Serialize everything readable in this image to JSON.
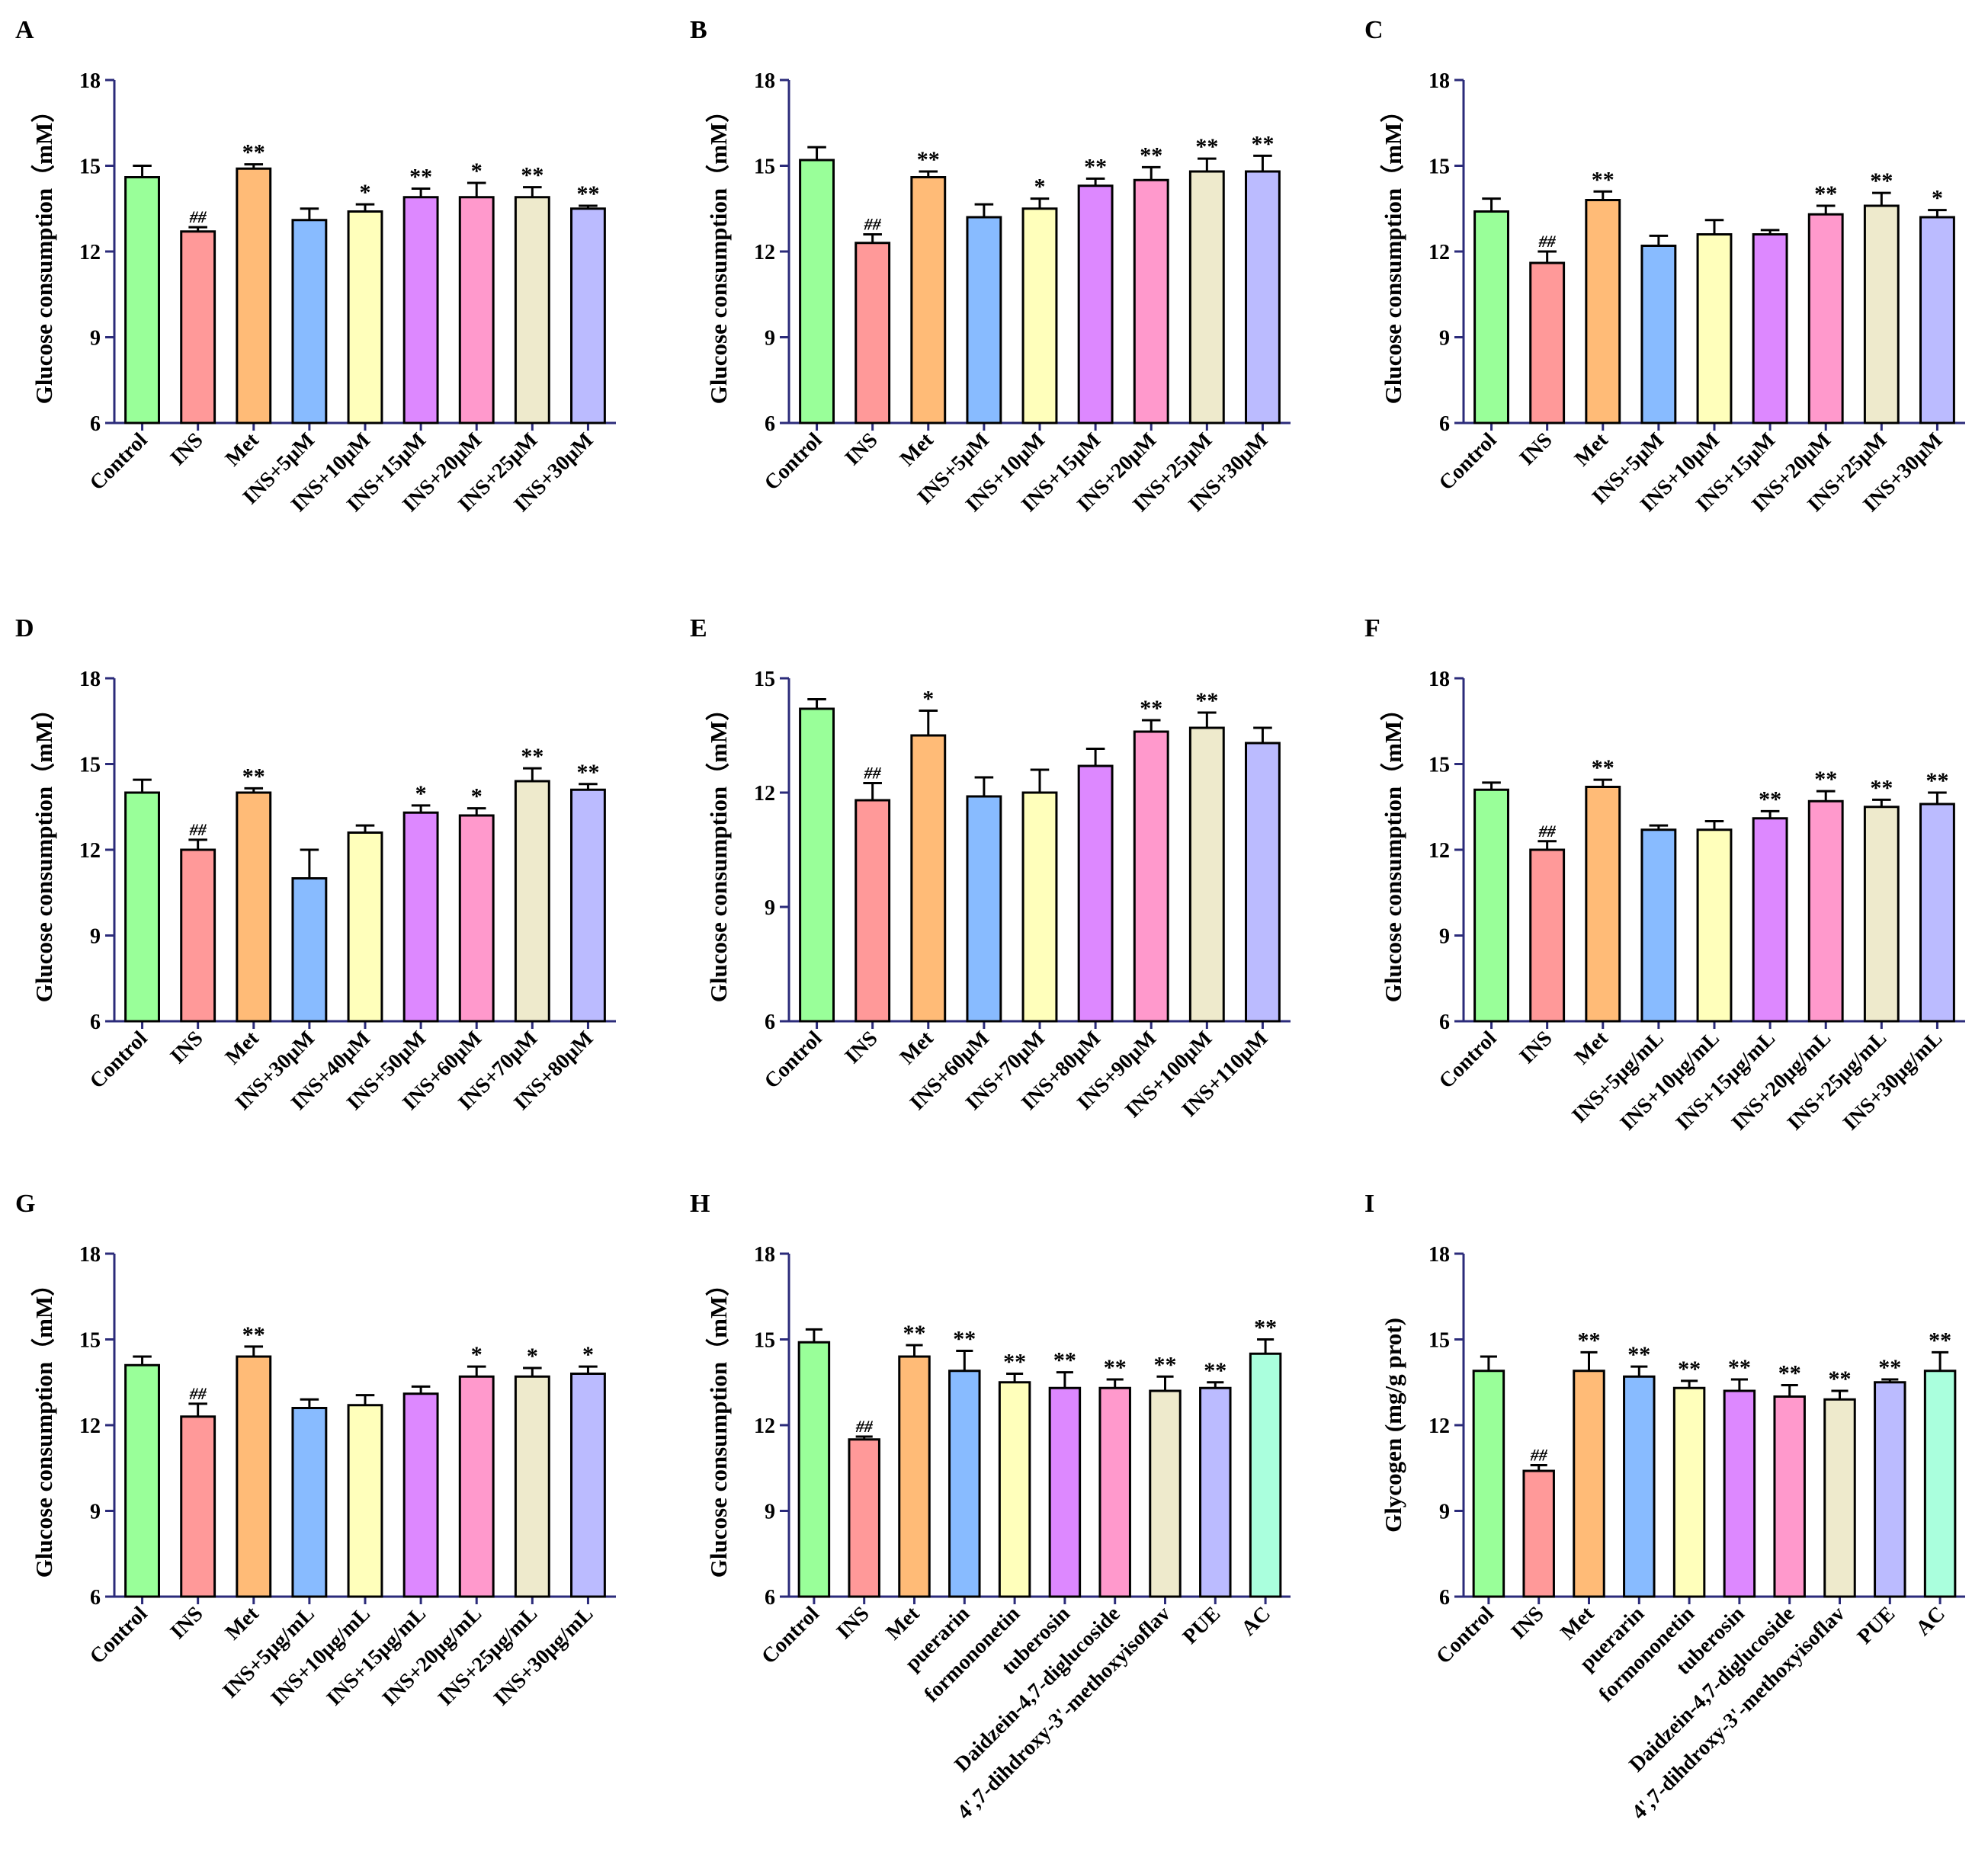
{
  "colors": {
    "bars": [
      "#99ff99",
      "#ff9999",
      "#ffbb77",
      "#88bbff",
      "#ffffbb",
      "#dd88ff",
      "#ff99cc",
      "#eeeacc",
      "#bbbbff",
      "#aaffdd"
    ],
    "axis": "#2b2b7a",
    "errorbar": "#000000"
  },
  "chart_data": [
    {
      "panel": "A",
      "type": "bar",
      "ylabel": "Glucose consumption（mM）",
      "ylim": [
        6,
        18
      ],
      "yticks": [
        6,
        9,
        12,
        15,
        18
      ],
      "ytick_labels": [
        "6",
        "9",
        "12",
        "15",
        "18"
      ],
      "categories": [
        "Control",
        "INS",
        "Met",
        "INS+5μM",
        "INS+10μM",
        "INS+15μM",
        "INS+20μM",
        "INS+25μM",
        "INS+30μM"
      ],
      "values": [
        14.6,
        12.7,
        14.9,
        13.1,
        13.4,
        13.9,
        13.9,
        13.9,
        13.5
      ],
      "errors": [
        0.4,
        0.15,
        0.15,
        0.4,
        0.25,
        0.3,
        0.5,
        0.35,
        0.1
      ],
      "annotations": [
        "",
        "##",
        "**",
        "",
        "*",
        "**",
        "*",
        "**",
        "**"
      ]
    },
    {
      "panel": "B",
      "type": "bar",
      "ylabel": "Glucose consumption（mM）",
      "ylim": [
        6,
        18
      ],
      "yticks": [
        6,
        9,
        12,
        15,
        18
      ],
      "ytick_labels": [
        "6",
        "9",
        "12",
        "15",
        "18"
      ],
      "categories": [
        "Control",
        "INS",
        "Met",
        "INS+5μM",
        "INS+10μM",
        "INS+15μM",
        "INS+20μM",
        "INS+25μM",
        "INS+30μM"
      ],
      "values": [
        15.2,
        12.3,
        14.6,
        13.2,
        13.5,
        14.3,
        14.5,
        14.8,
        14.8
      ],
      "errors": [
        0.45,
        0.3,
        0.2,
        0.45,
        0.35,
        0.25,
        0.45,
        0.45,
        0.55
      ],
      "annotations": [
        "",
        "##",
        "**",
        "",
        "*",
        "**",
        "**",
        "**",
        "**"
      ]
    },
    {
      "panel": "C",
      "type": "bar",
      "ylabel": "Glucose consumption（mM）",
      "ylim": [
        6,
        18
      ],
      "yticks": [
        6,
        9,
        12,
        15,
        18
      ],
      "ytick_labels": [
        "6",
        "9",
        "12",
        "15",
        "18"
      ],
      "categories": [
        "Control",
        "INS",
        "Met",
        "INS+5μM",
        "INS+10μM",
        "INS+15μM",
        "INS+20μM",
        "INS+25μM",
        "INS+30μM"
      ],
      "values": [
        13.4,
        11.6,
        13.8,
        12.2,
        12.6,
        12.6,
        13.3,
        13.6,
        13.2
      ],
      "errors": [
        0.45,
        0.4,
        0.3,
        0.35,
        0.5,
        0.15,
        0.3,
        0.45,
        0.25
      ],
      "annotations": [
        "",
        "##",
        "**",
        "",
        "",
        "",
        "**",
        "**",
        "*"
      ]
    },
    {
      "panel": "D",
      "type": "bar",
      "ylabel": "Glucose consumption（mM）",
      "ylim": [
        6,
        18
      ],
      "yticks": [
        6,
        9,
        12,
        15,
        18
      ],
      "ytick_labels": [
        "6",
        "9",
        "12",
        "15",
        "18"
      ],
      "categories": [
        "Control",
        "INS",
        "Met",
        "INS+30μM",
        "INS+40μM",
        "INS+50μM",
        "INS+60μM",
        "INS+70μM",
        "INS+80μM"
      ],
      "values": [
        14.0,
        12.0,
        14.0,
        11.0,
        12.6,
        13.3,
        13.2,
        14.4,
        14.1
      ],
      "errors": [
        0.45,
        0.35,
        0.15,
        1.0,
        0.25,
        0.25,
        0.25,
        0.45,
        0.2
      ],
      "annotations": [
        "",
        "##",
        "**",
        "",
        "",
        "*",
        "*",
        "**",
        "**"
      ]
    },
    {
      "panel": "E",
      "type": "bar",
      "ylabel": "Glucose consumption（mM）",
      "ylim": [
        6,
        15
      ],
      "yticks": [
        6,
        9,
        12,
        15
      ],
      "ytick_labels": [
        "6",
        "9",
        "12",
        "15"
      ],
      "categories": [
        "Control",
        "INS",
        "Met",
        "INS+60μM",
        "INS+70μM",
        "INS+80μM",
        "INS+90μM",
        "INS+100μM",
        "INS+110μM"
      ],
      "values": [
        14.2,
        11.8,
        13.5,
        11.9,
        12.0,
        12.7,
        13.6,
        13.7,
        13.3
      ],
      "errors": [
        0.25,
        0.45,
        0.65,
        0.5,
        0.6,
        0.45,
        0.3,
        0.4,
        0.4
      ],
      "annotations": [
        "",
        "##",
        "*",
        "",
        "",
        "",
        "**",
        "**",
        ""
      ]
    },
    {
      "panel": "F",
      "type": "bar",
      "ylabel": "Glucose consumption（mM）",
      "ylim": [
        6,
        18
      ],
      "yticks": [
        6,
        9,
        12,
        15,
        18
      ],
      "ytick_labels": [
        "6",
        "9",
        "12",
        "15",
        "18"
      ],
      "categories": [
        "Control",
        "INS",
        "Met",
        "INS+5μg/mL",
        "INS+10μg/mL",
        "INS+15μg/mL",
        "INS+20μg/mL",
        "INS+25μg/mL",
        "INS+30μg/mL"
      ],
      "values": [
        14.1,
        12.0,
        14.2,
        12.7,
        12.7,
        13.1,
        13.7,
        13.5,
        13.6
      ],
      "errors": [
        0.25,
        0.3,
        0.25,
        0.15,
        0.3,
        0.25,
        0.35,
        0.25,
        0.4
      ],
      "annotations": [
        "",
        "##",
        "**",
        "",
        "",
        "**",
        "**",
        "**",
        "**"
      ]
    },
    {
      "panel": "G",
      "type": "bar",
      "ylabel": "Glucose consumption（mM）",
      "ylim": [
        6,
        18
      ],
      "yticks": [
        6,
        9,
        12,
        15,
        18
      ],
      "ytick_labels": [
        "6",
        "9",
        "12",
        "15",
        "18"
      ],
      "categories": [
        "Control",
        "INS",
        "Met",
        "INS+5μg/mL",
        "INS+10μg/mL",
        "INS+15μg/mL",
        "INS+20μg/mL",
        "INS+25μg/mL",
        "INS+30μg/mL"
      ],
      "values": [
        14.1,
        12.3,
        14.4,
        12.6,
        12.7,
        13.1,
        13.7,
        13.7,
        13.8
      ],
      "errors": [
        0.3,
        0.45,
        0.35,
        0.3,
        0.35,
        0.25,
        0.35,
        0.3,
        0.25
      ],
      "annotations": [
        "",
        "##",
        "**",
        "",
        "",
        "",
        "*",
        "*",
        "*"
      ]
    },
    {
      "panel": "H",
      "type": "bar",
      "ylabel": "Glucose consumption（mM）",
      "ylim": [
        6,
        18
      ],
      "yticks": [
        6,
        9,
        12,
        15,
        18
      ],
      "ytick_labels": [
        "6",
        "9",
        "12",
        "15",
        "18"
      ],
      "categories": [
        "Control",
        "INS",
        "Met",
        "puerarin",
        "formononetin",
        "tuberosin",
        "Daidzein-4,7-diglucoside",
        "4',7-dihdroxy-3'-methoxyisoflav",
        "PUE",
        "AC"
      ],
      "values": [
        14.9,
        11.5,
        14.4,
        13.9,
        13.5,
        13.3,
        13.3,
        13.2,
        13.3,
        14.5
      ],
      "errors": [
        0.45,
        0.1,
        0.4,
        0.7,
        0.3,
        0.55,
        0.3,
        0.5,
        0.2,
        0.5
      ],
      "annotations": [
        "",
        "##",
        "**",
        "**",
        "**",
        "**",
        "**",
        "**",
        "**",
        "**"
      ]
    },
    {
      "panel": "I",
      "type": "bar",
      "ylabel": "Glycogen (mg/g prot)",
      "ylim": [
        6,
        18
      ],
      "yticks": [
        6,
        9,
        12,
        15,
        18
      ],
      "ytick_labels": [
        "6",
        "9",
        "12",
        "15",
        "18"
      ],
      "categories": [
        "Control",
        "INS",
        "Met",
        "puerarin",
        "formononetin",
        "tuberosin",
        "Daidzein-4,7-diglucoside",
        "4',7-dihdroxy-3'-methoxyisoflav",
        "PUE",
        "AC"
      ],
      "values": [
        13.9,
        10.4,
        13.9,
        13.7,
        13.3,
        13.2,
        13.0,
        12.9,
        13.5,
        13.9
      ],
      "errors": [
        0.5,
        0.2,
        0.65,
        0.35,
        0.25,
        0.4,
        0.4,
        0.3,
        0.1,
        0.65
      ],
      "annotations": [
        "",
        "##",
        "**",
        "**",
        "**",
        "**",
        "**",
        "**",
        "**",
        "**"
      ]
    }
  ]
}
